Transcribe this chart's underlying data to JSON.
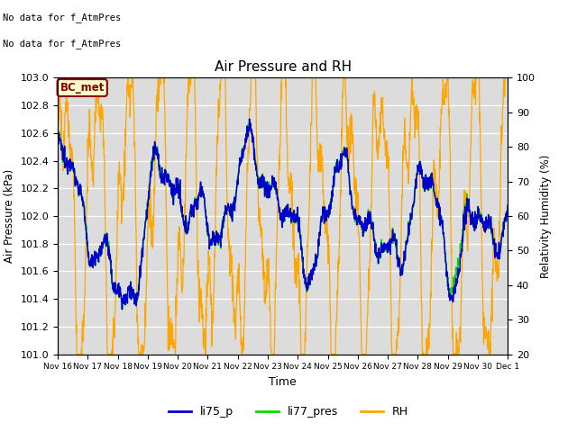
{
  "title": "Air Pressure and RH",
  "xlabel": "Time",
  "ylabel_left": "Air Pressure (kPa)",
  "ylabel_right": "Relativity Humidity (%)",
  "annotation_line1": "No data for f_AtmPres",
  "annotation_line2": "No data for f_AtmPres",
  "box_label": "BC_met",
  "ylim_left": [
    101.0,
    103.0
  ],
  "ylim_right": [
    20,
    100
  ],
  "yticks_left": [
    101.0,
    101.2,
    101.4,
    101.6,
    101.8,
    102.0,
    102.2,
    102.4,
    102.6,
    102.8,
    103.0
  ],
  "yticks_right": [
    20,
    30,
    40,
    50,
    60,
    70,
    80,
    90,
    100
  ],
  "fig_bg_color": "#ffffff",
  "plot_bg_color": "#dcdcdc",
  "line_colors": {
    "li75_p": "#0000cc",
    "li77_pres": "#00dd00",
    "RH": "#ffa500"
  },
  "x_tick_labels": [
    "Nov 16",
    "Nov 17",
    "Nov 18",
    "Nov 19",
    "Nov 20",
    "Nov 21",
    "Nov 22",
    "Nov 23",
    "Nov 24",
    "Nov 25",
    "Nov 26",
    "Nov 27",
    "Nov 28",
    "Nov 29",
    "Nov 30",
    "Dec 1"
  ],
  "n_days": 15
}
